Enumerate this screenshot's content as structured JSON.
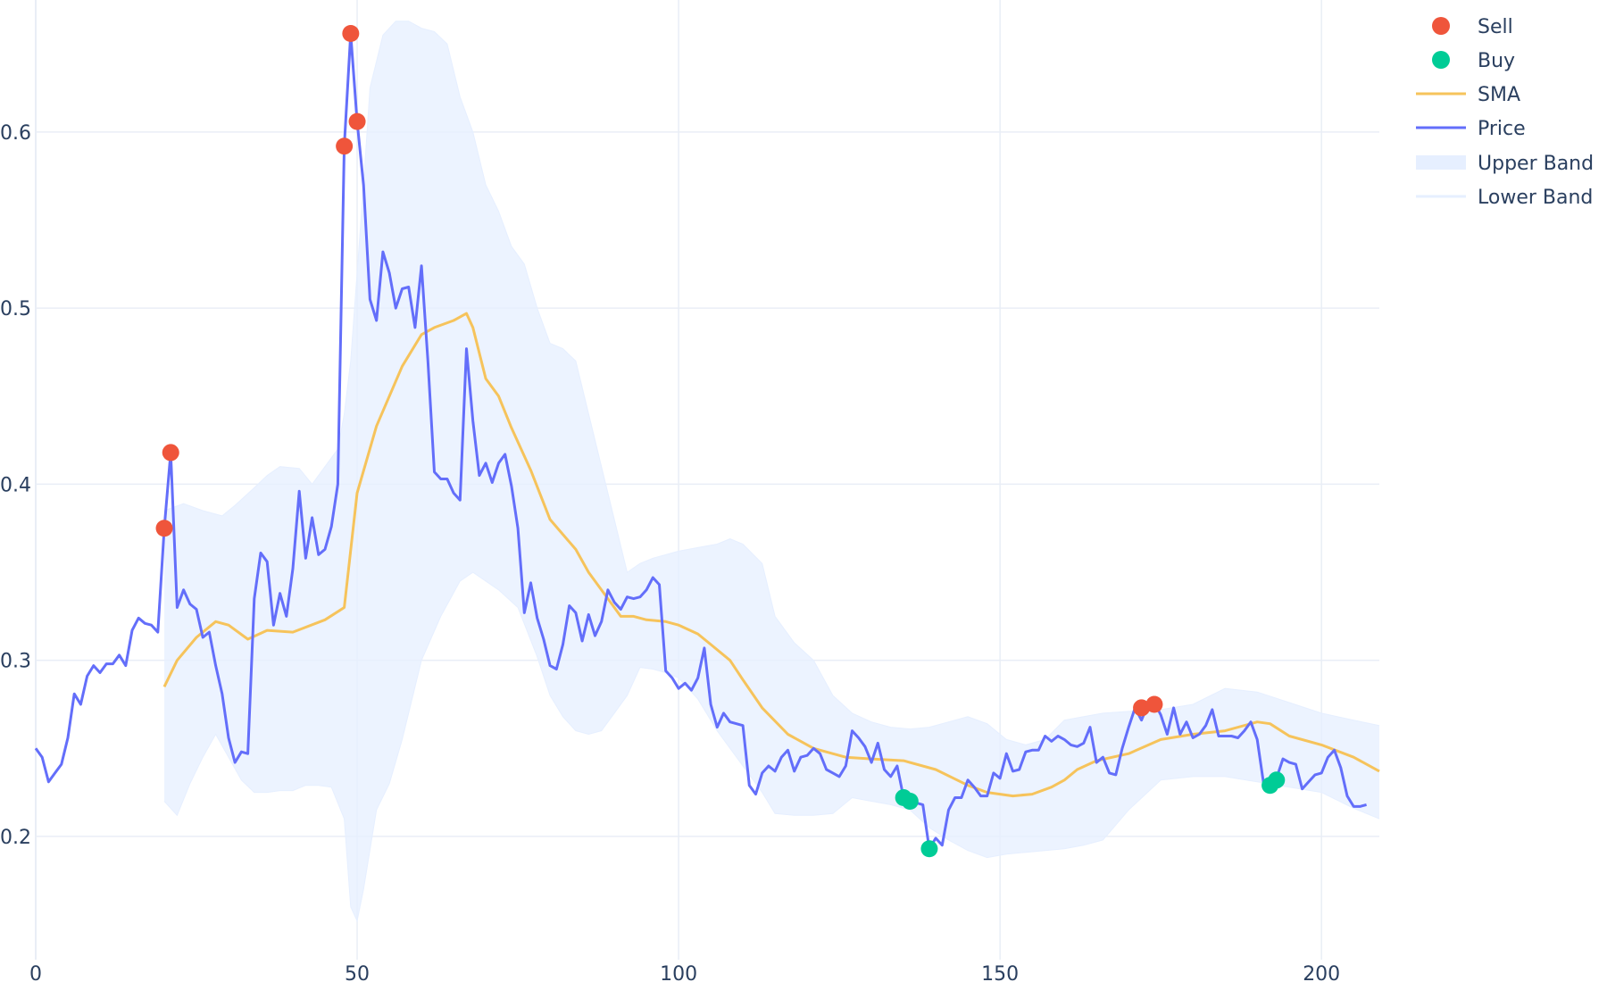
{
  "chart_data": {
    "type": "line",
    "xlim": [
      0,
      209
    ],
    "ylim": [
      0.13,
      0.675
    ],
    "x_ticks": [
      0,
      50,
      100,
      150,
      200
    ],
    "y_ticks": [
      0.2,
      0.3,
      0.4,
      0.5,
      0.6
    ],
    "grid": true,
    "legend_position": "top-right",
    "legend": [
      "Sell",
      "Buy",
      "SMA",
      "Price",
      "Upper Band",
      "Lower Band"
    ],
    "colors": {
      "price": "#636efa",
      "sma": "#f6c35b",
      "sell": "#ef553b",
      "buy": "#00cc96",
      "band": "#e6efff",
      "grid": "#e9eef6"
    },
    "price": [
      0.25,
      0.245,
      0.231,
      0.236,
      0.241,
      0.256,
      0.281,
      0.275,
      0.291,
      0.297,
      0.293,
      0.298,
      0.298,
      0.303,
      0.297,
      0.317,
      0.324,
      0.321,
      0.32,
      0.316,
      0.375,
      0.418,
      0.33,
      0.34,
      0.332,
      0.329,
      0.313,
      0.316,
      0.297,
      0.281,
      0.256,
      0.242,
      0.248,
      0.247,
      0.335,
      0.361,
      0.356,
      0.32,
      0.338,
      0.325,
      0.352,
      0.396,
      0.358,
      0.381,
      0.36,
      0.363,
      0.376,
      0.4,
      0.592,
      0.656,
      0.606,
      0.57,
      0.505,
      0.493,
      0.532,
      0.52,
      0.5,
      0.511,
      0.512,
      0.489,
      0.524,
      0.47,
      0.407,
      0.403,
      0.403,
      0.395,
      0.391,
      0.477,
      0.436,
      0.405,
      0.412,
      0.401,
      0.412,
      0.417,
      0.399,
      0.375,
      0.327,
      0.344,
      0.324,
      0.312,
      0.297,
      0.295,
      0.309,
      0.331,
      0.327,
      0.311,
      0.326,
      0.314,
      0.322,
      0.34,
      0.333,
      0.329,
      0.336,
      0.335,
      0.336,
      0.34,
      0.347,
      0.343,
      0.294,
      0.29,
      0.284,
      0.287,
      0.283,
      0.29,
      0.307,
      0.275,
      0.262,
      0.27,
      0.265,
      0.264,
      0.263,
      0.229,
      0.224,
      0.236,
      0.24,
      0.237,
      0.245,
      0.249,
      0.237,
      0.245,
      0.246,
      0.25,
      0.247,
      0.238,
      0.236,
      0.234,
      0.24,
      0.26,
      0.256,
      0.251,
      0.242,
      0.253,
      0.238,
      0.234,
      0.24,
      0.222,
      0.22,
      0.219,
      0.218,
      0.193,
      0.199,
      0.195,
      0.215,
      0.222,
      0.222,
      0.232,
      0.228,
      0.223,
      0.223,
      0.236,
      0.233,
      0.247,
      0.237,
      0.238,
      0.248,
      0.249,
      0.249,
      0.257,
      0.254,
      0.257,
      0.255,
      0.252,
      0.251,
      0.253,
      0.262,
      0.242,
      0.245,
      0.236,
      0.235,
      0.25,
      0.262,
      0.273,
      0.266,
      0.275,
      0.276,
      0.269,
      0.258,
      0.273,
      0.258,
      0.265,
      0.256,
      0.258,
      0.263,
      0.272,
      0.257,
      0.257,
      0.257,
      0.256,
      0.26,
      0.265,
      0.255,
      0.23,
      0.232,
      0.233,
      0.244,
      0.242,
      0.241,
      0.227,
      0.231,
      0.235,
      0.236,
      0.245,
      0.249,
      0.239,
      0.223,
      0.217,
      0.217,
      0.218
    ],
    "sma": {
      "x": [
        20,
        22,
        25,
        28,
        30,
        33,
        36,
        40,
        45,
        48,
        50,
        53,
        57,
        60,
        62,
        65,
        67,
        68,
        70,
        72,
        74,
        77,
        80,
        84,
        86,
        89,
        91,
        93,
        95,
        98,
        100,
        103,
        105,
        108,
        110,
        113,
        117,
        121,
        126,
        130,
        135,
        140,
        145,
        148,
        152,
        155,
        158,
        160,
        162,
        165,
        170,
        175,
        180,
        185,
        190,
        192,
        195,
        200,
        205,
        209
      ],
      "y": [
        0.285,
        0.3,
        0.313,
        0.322,
        0.32,
        0.312,
        0.317,
        0.316,
        0.323,
        0.33,
        0.395,
        0.433,
        0.467,
        0.485,
        0.489,
        0.493,
        0.497,
        0.489,
        0.46,
        0.45,
        0.432,
        0.408,
        0.38,
        0.363,
        0.35,
        0.335,
        0.325,
        0.325,
        0.323,
        0.322,
        0.32,
        0.315,
        0.309,
        0.3,
        0.289,
        0.273,
        0.258,
        0.25,
        0.245,
        0.244,
        0.243,
        0.238,
        0.229,
        0.225,
        0.223,
        0.224,
        0.228,
        0.232,
        0.238,
        0.243,
        0.247,
        0.255,
        0.258,
        0.26,
        0.265,
        0.264,
        0.257,
        0.252,
        0.245,
        0.237
      ]
    },
    "upper_band": {
      "x": [
        20,
        23,
        26,
        29,
        31,
        34,
        36,
        38,
        41,
        43,
        45,
        47,
        48,
        49,
        50,
        51,
        52,
        54,
        56,
        58,
        60,
        62,
        64,
        66,
        68,
        70,
        72,
        74,
        76,
        78,
        80,
        82,
        84,
        86,
        88,
        90,
        92,
        94,
        96,
        98,
        100,
        103,
        106,
        108,
        110,
        113,
        115,
        118,
        121,
        124,
        127,
        130,
        133,
        136,
        139,
        142,
        145,
        148,
        151,
        154,
        157,
        160,
        163,
        166,
        170,
        175,
        180,
        185,
        190,
        195,
        200,
        205,
        209
      ],
      "y": [
        0.385,
        0.389,
        0.385,
        0.382,
        0.388,
        0.398,
        0.405,
        0.41,
        0.409,
        0.4,
        0.41,
        0.42,
        0.44,
        0.47,
        0.52,
        0.57,
        0.625,
        0.655,
        0.663,
        0.663,
        0.659,
        0.657,
        0.65,
        0.62,
        0.6,
        0.57,
        0.555,
        0.535,
        0.525,
        0.5,
        0.48,
        0.477,
        0.47,
        0.44,
        0.41,
        0.38,
        0.35,
        0.355,
        0.358,
        0.36,
        0.362,
        0.364,
        0.366,
        0.369,
        0.366,
        0.355,
        0.325,
        0.31,
        0.3,
        0.28,
        0.27,
        0.265,
        0.262,
        0.261,
        0.262,
        0.265,
        0.268,
        0.264,
        0.255,
        0.252,
        0.255,
        0.266,
        0.268,
        0.27,
        0.271,
        0.272,
        0.275,
        0.284,
        0.282,
        0.276,
        0.27,
        0.266,
        0.263
      ]
    },
    "lower_band": {
      "x": [
        20,
        21,
        22,
        24,
        26,
        28,
        30,
        32,
        34,
        36,
        38,
        40,
        42,
        44,
        46,
        48,
        49,
        50,
        51,
        53,
        55,
        57,
        60,
        63,
        66,
        68,
        70,
        72,
        75,
        78,
        80,
        82,
        84,
        86,
        88,
        90,
        92,
        94,
        96,
        98,
        100,
        103,
        106,
        110,
        113,
        115,
        118,
        121,
        124,
        127,
        130,
        133,
        136,
        139,
        142,
        145,
        148,
        151,
        154,
        157,
        160,
        163,
        166,
        170,
        175,
        180,
        185,
        190,
        195,
        200,
        205,
        209
      ],
      "y": [
        0.22,
        0.216,
        0.212,
        0.23,
        0.245,
        0.258,
        0.245,
        0.232,
        0.225,
        0.225,
        0.226,
        0.226,
        0.229,
        0.229,
        0.228,
        0.21,
        0.16,
        0.152,
        0.17,
        0.215,
        0.23,
        0.255,
        0.3,
        0.325,
        0.345,
        0.35,
        0.345,
        0.34,
        0.33,
        0.302,
        0.28,
        0.268,
        0.26,
        0.258,
        0.26,
        0.27,
        0.28,
        0.296,
        0.295,
        0.293,
        0.29,
        0.278,
        0.26,
        0.24,
        0.225,
        0.213,
        0.212,
        0.212,
        0.213,
        0.222,
        0.22,
        0.218,
        0.215,
        0.205,
        0.198,
        0.192,
        0.188,
        0.19,
        0.191,
        0.192,
        0.193,
        0.195,
        0.198,
        0.215,
        0.232,
        0.234,
        0.234,
        0.231,
        0.228,
        0.225,
        0.216,
        0.21
      ]
    },
    "sell_points": [
      [
        20,
        0.375
      ],
      [
        21,
        0.418
      ],
      [
        48,
        0.592
      ],
      [
        49,
        0.656
      ],
      [
        50,
        0.606
      ],
      [
        172,
        0.273
      ],
      [
        174,
        0.275
      ]
    ],
    "buy_points": [
      [
        135,
        0.222
      ],
      [
        136,
        0.22
      ],
      [
        139,
        0.193
      ],
      [
        192,
        0.229
      ],
      [
        193,
        0.232
      ]
    ]
  }
}
